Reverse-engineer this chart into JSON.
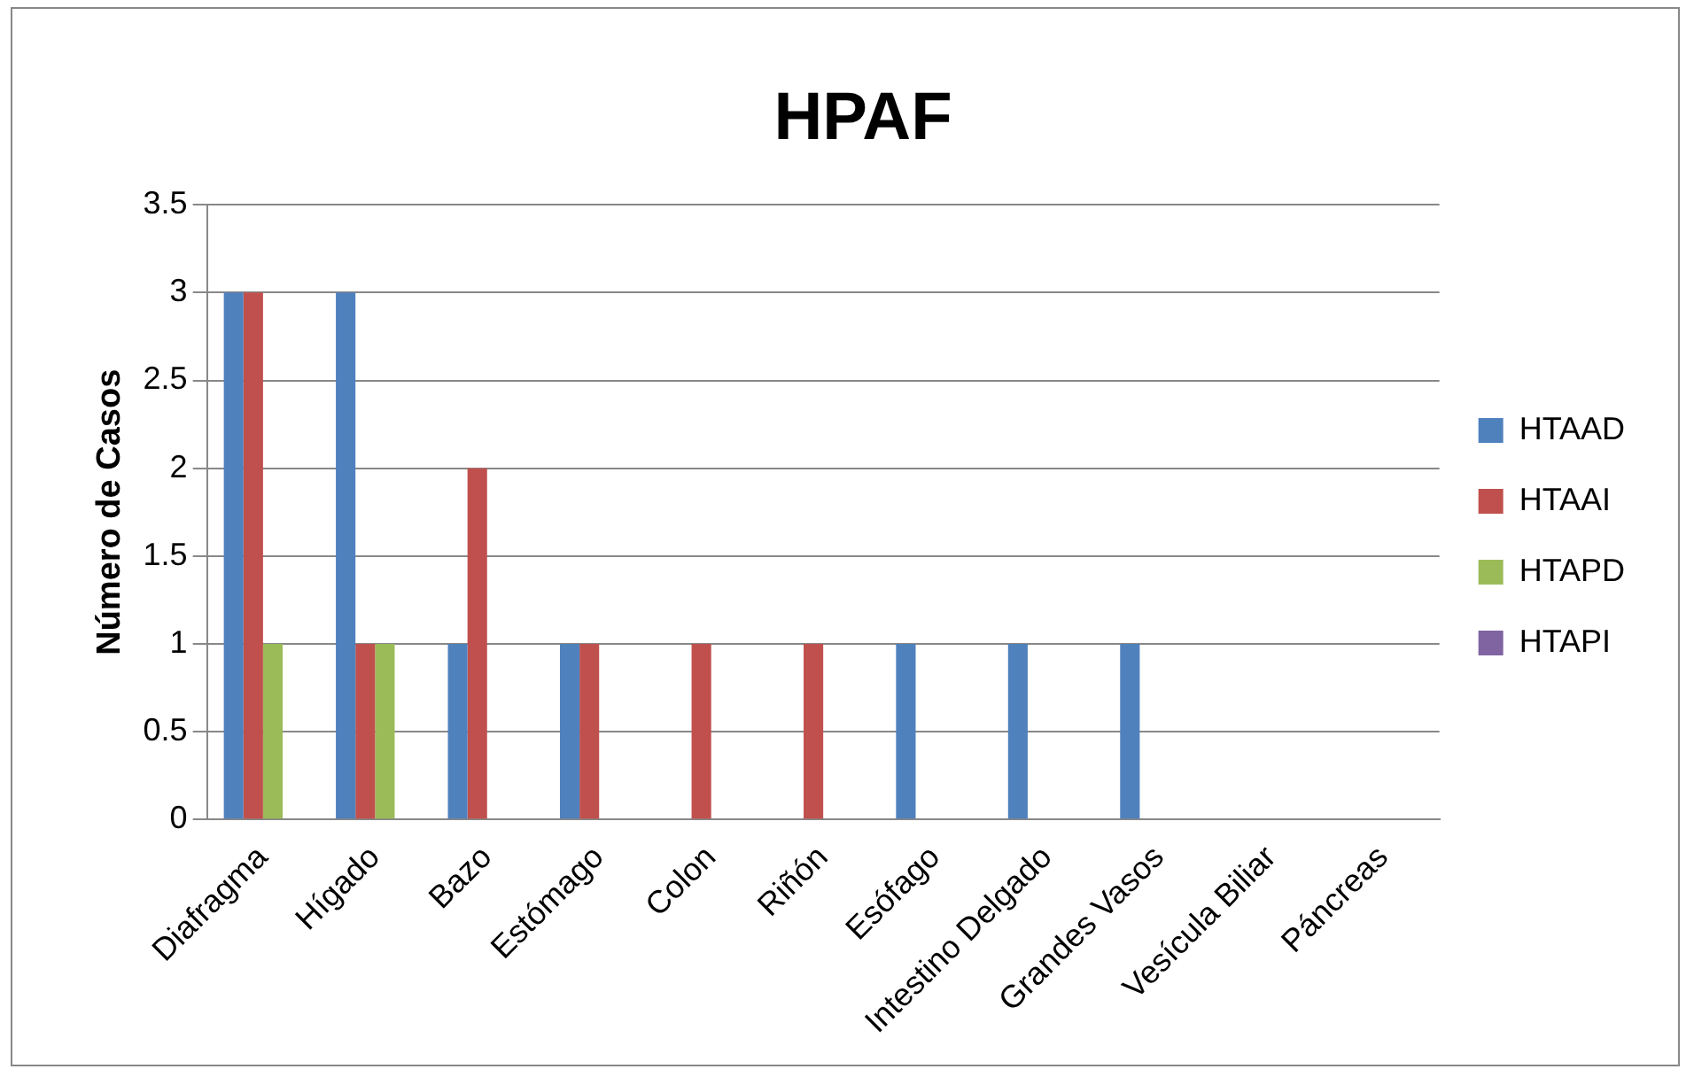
{
  "chart_data": {
    "type": "bar",
    "title": "HPAF",
    "ylabel": "Número de Casos",
    "categories": [
      "Diafragma",
      "Hígado",
      "Bazo",
      "Estómago",
      "Colon",
      "Riñón",
      "Esófago",
      "Intestino Delgado",
      "Grandes Vasos",
      "Vesícula Biliar",
      "Páncreas"
    ],
    "series": [
      {
        "name": "HTAAD",
        "color": "#4f81bd",
        "values": [
          3,
          3,
          1,
          1,
          0,
          0,
          1,
          1,
          1,
          0,
          0
        ]
      },
      {
        "name": "HTAAI",
        "color": "#c0504d",
        "values": [
          3,
          1,
          2,
          1,
          1,
          1,
          0,
          0,
          0,
          0,
          0
        ]
      },
      {
        "name": "HTAPD",
        "color": "#9bbb59",
        "values": [
          1,
          1,
          0,
          0,
          0,
          0,
          0,
          0,
          0,
          0,
          0
        ]
      },
      {
        "name": "HTAPI",
        "color": "#8064a2",
        "values": [
          0,
          0,
          0,
          0,
          0,
          0,
          0,
          0,
          0,
          0,
          0
        ]
      }
    ],
    "ylim": [
      0,
      3.5
    ],
    "yticks": [
      0,
      0.5,
      1,
      1.5,
      2,
      2.5,
      3,
      3.5
    ],
    "grid": "y",
    "legend": "right"
  }
}
